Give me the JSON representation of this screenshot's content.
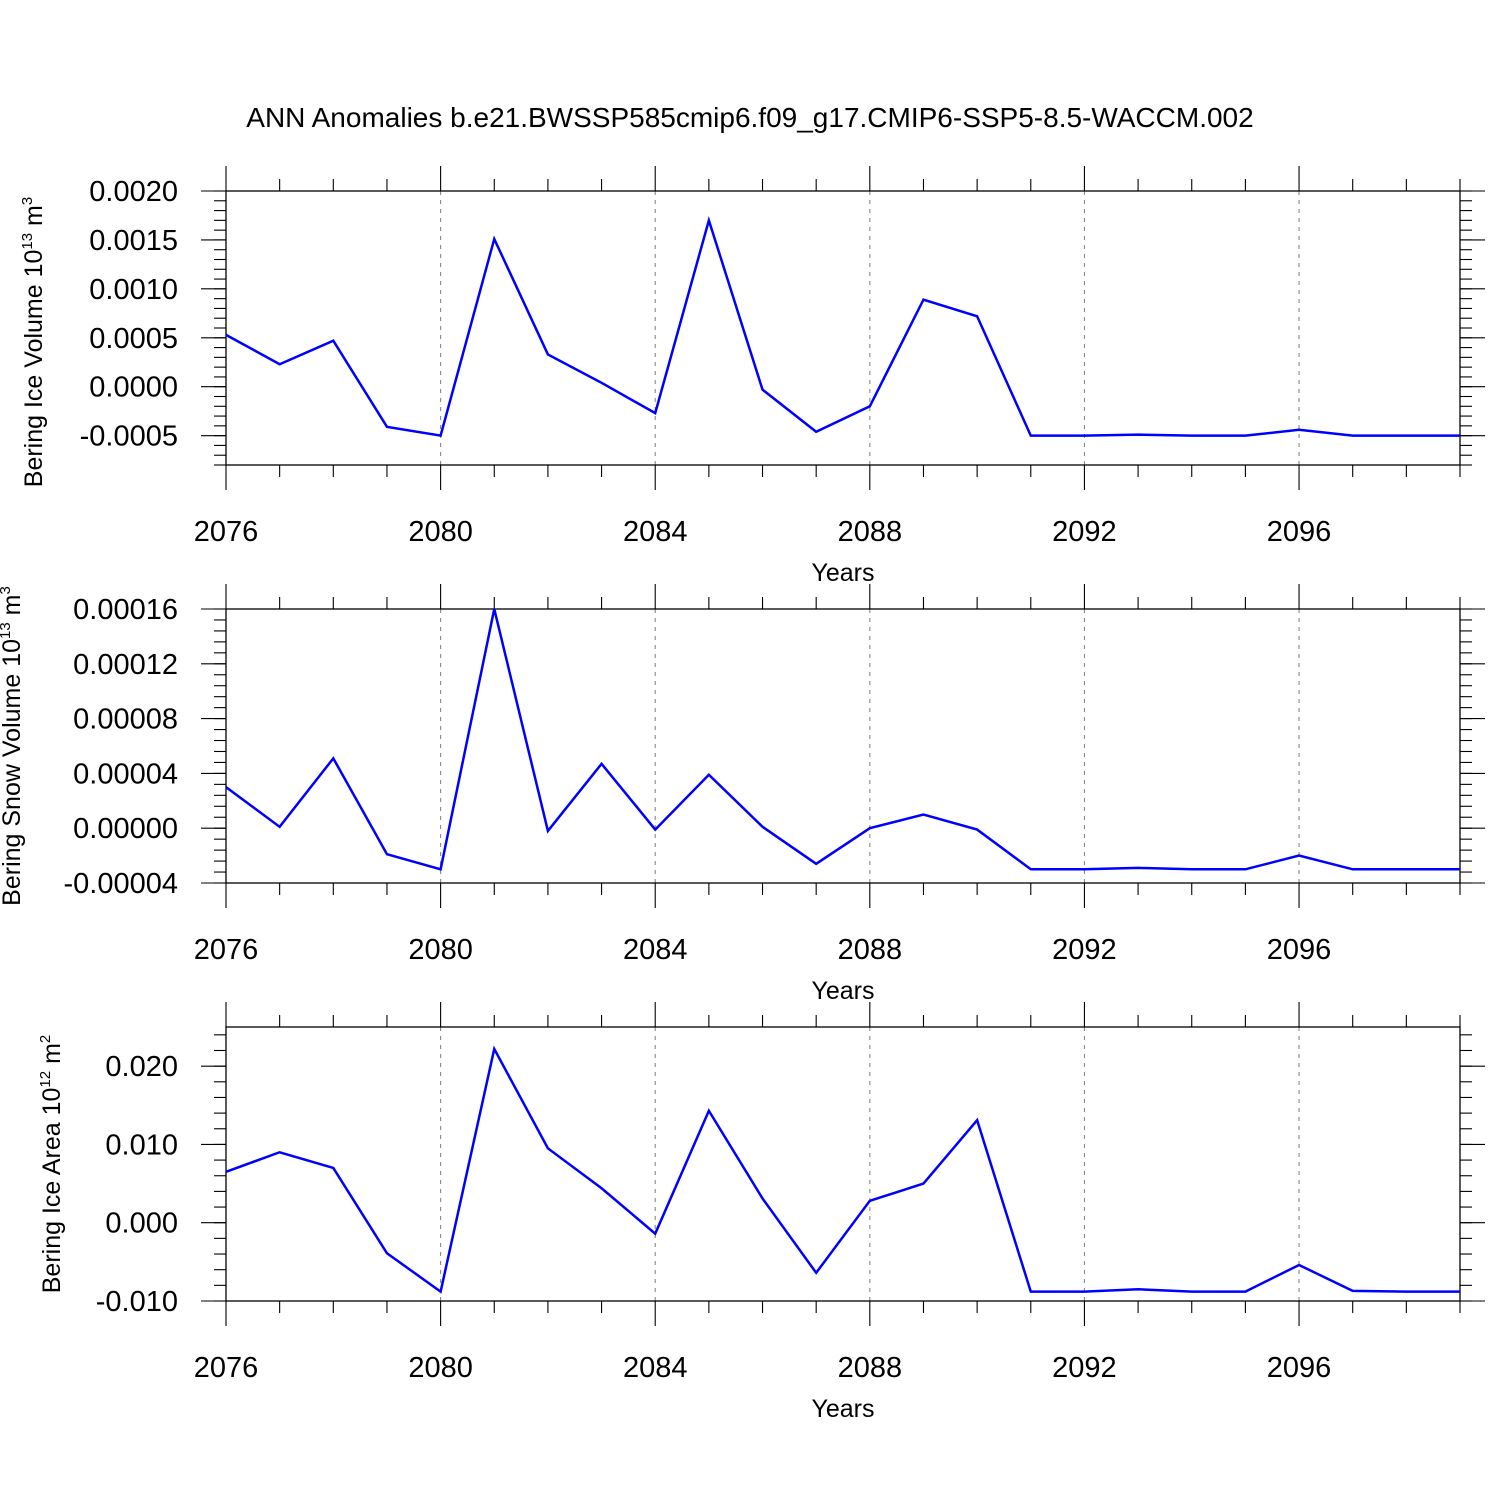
{
  "title": "ANN Anomalies b.e21.BWSSP585cmip6.f09_g17.CMIP6-SSP5-8.5-WACCM.002",
  "chart_data": [
    {
      "type": "line",
      "ylabel_main": "Bering Ice Volume 10",
      "ylabel_sup": "13",
      "ylabel_unit": " m",
      "ylabel_unit_sup": "3",
      "xlabel": "Years",
      "xlim": [
        2076,
        2099
      ],
      "ylim": [
        -0.0008,
        0.002
      ],
      "grid": "dashed vertical lines at x tick labels",
      "x_ticks": [
        2076,
        2080,
        2084,
        2088,
        2092,
        2096
      ],
      "x_tick_labels": [
        "2076",
        "2080",
        "2084",
        "2088",
        "2092",
        "2096"
      ],
      "y_ticks": [
        -0.0005,
        0,
        0.0005,
        0.001,
        0.0015,
        0.002
      ],
      "y_tick_labels": [
        "-0.0005",
        "0.0000",
        "0.0005",
        "0.0010",
        "0.0015",
        "0.0020"
      ],
      "x": [
        2076,
        2077,
        2078,
        2079,
        2080,
        2081,
        2082,
        2083,
        2084,
        2085,
        2086,
        2087,
        2088,
        2089,
        2090,
        2091,
        2092,
        2093,
        2094,
        2095,
        2096,
        2097,
        2098,
        2099
      ],
      "series": [
        {
          "color": "#0000ff",
          "values": [
            0.00053,
            0.00023,
            0.00047,
            -0.00041,
            -0.0005,
            0.00151,
            0.00033,
            4e-05,
            -0.00027,
            0.0017,
            -3e-05,
            -0.00046,
            -0.0002,
            0.00089,
            0.00072,
            -0.0005,
            -0.0005,
            -0.00049,
            -0.0005,
            -0.0005,
            -0.00044,
            -0.0005,
            -0.0005,
            -0.0005
          ]
        }
      ]
    },
    {
      "type": "line",
      "ylabel_main": "Bering Snow Volume 10",
      "ylabel_sup": "13",
      "ylabel_unit": " m",
      "ylabel_unit_sup": "3",
      "xlabel": "Years",
      "xlim": [
        2076,
        2099
      ],
      "ylim": [
        -4e-05,
        0.00016
      ],
      "grid": "dashed vertical lines at x tick labels",
      "x_ticks": [
        2076,
        2080,
        2084,
        2088,
        2092,
        2096
      ],
      "x_tick_labels": [
        "2076",
        "2080",
        "2084",
        "2088",
        "2092",
        "2096"
      ],
      "y_ticks": [
        -4e-05,
        0,
        4e-05,
        8e-05,
        0.00012,
        0.00016
      ],
      "y_tick_labels": [
        "-0.00004",
        "0.00000",
        "0.00004",
        "0.00008",
        "0.00012",
        "0.00016"
      ],
      "x": [
        2076,
        2077,
        2078,
        2079,
        2080,
        2081,
        2082,
        2083,
        2084,
        2085,
        2086,
        2087,
        2088,
        2089,
        2090,
        2091,
        2092,
        2093,
        2094,
        2095,
        2096,
        2097,
        2098,
        2099
      ],
      "series": [
        {
          "color": "#0000ff",
          "values": [
            3e-05,
            1e-06,
            5.1e-05,
            -1.9e-05,
            -3e-05,
            0.00016,
            -2e-06,
            4.7e-05,
            -1e-06,
            3.9e-05,
            1e-06,
            -2.6e-05,
            0.0,
            1e-05,
            -1e-06,
            -3e-05,
            -3e-05,
            -2.9e-05,
            -3e-05,
            -3e-05,
            -2e-05,
            -3e-05,
            -3e-05,
            -3e-05
          ]
        }
      ]
    },
    {
      "type": "line",
      "ylabel_main": "Bering Ice Area 10",
      "ylabel_sup": "12",
      "ylabel_unit": " m",
      "ylabel_unit_sup": "2",
      "xlabel": "Years",
      "xlim": [
        2076,
        2099
      ],
      "ylim": [
        -0.01,
        0.025
      ],
      "grid": "dashed vertical lines at x tick labels",
      "x_ticks": [
        2076,
        2080,
        2084,
        2088,
        2092,
        2096
      ],
      "x_tick_labels": [
        "2076",
        "2080",
        "2084",
        "2088",
        "2092",
        "2096"
      ],
      "y_ticks": [
        -0.01,
        0,
        0.01,
        0.02
      ],
      "y_tick_labels": [
        "-0.010",
        "0.000",
        "0.010",
        "0.020"
      ],
      "x": [
        2076,
        2077,
        2078,
        2079,
        2080,
        2081,
        2082,
        2083,
        2084,
        2085,
        2086,
        2087,
        2088,
        2089,
        2090,
        2091,
        2092,
        2093,
        2094,
        2095,
        2096,
        2097,
        2098,
        2099
      ],
      "series": [
        {
          "color": "#0000ff",
          "values": [
            0.0065,
            0.009,
            0.007,
            -0.0039,
            -0.0088,
            0.0222,
            0.0095,
            0.0044,
            -0.0014,
            0.0143,
            0.0031,
            -0.0064,
            0.0028,
            0.005,
            0.0131,
            -0.0088,
            -0.0088,
            -0.0085,
            -0.0088,
            -0.0088,
            -0.0054,
            -0.0087,
            -0.0088,
            -0.0088
          ]
        }
      ]
    }
  ]
}
